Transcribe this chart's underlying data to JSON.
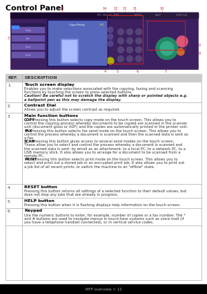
{
  "title": "Control Panel",
  "page_bg": "#ffffff",
  "footer_text": "MFP overview > 12",
  "footer_bg": "#000000",
  "rows": [
    {
      "ref": "1.",
      "title": "Touch screen display",
      "body_parts": [
        {
          "text": "Enables you to make selections associated with the copying, faxing and scanning\nfunctions by touching the screen to press selected buttons.",
          "bold": false,
          "italic": false
        },
        {
          "text": "Caution! Be careful not to scratch the display with sharp or pointed objects e.g.\na ballpoint pen as this may damage the display.",
          "bold": true,
          "italic": true
        }
      ]
    },
    {
      "ref": "2.",
      "title": "Contrast Dial",
      "body_parts": [
        {
          "text": "Allows you to adjust the screen contrast as required.",
          "bold": false,
          "italic": false
        }
      ]
    },
    {
      "ref": "3.",
      "title": "Main function buttons",
      "body_parts": [
        {
          "text": "COPY",
          "bold": true,
          "italic": false,
          "inline": ": Pressing this button selects copy mode on the touch screen. This allows you to\ncontrol the copying process whereby documents to be copied are scanned in the scanner\nunit (document glass or ADF) and the copies are automatically printed in the printer unit."
        },
        {
          "text": "FAX",
          "bold": true,
          "italic": false,
          "inline": ": Pressing this button selects fax send mode on the touch screen. This allows you to\ncontrol the process whereby a document is scanned and then the scanned data is sent as\na fax."
        },
        {
          "text": "SCAN",
          "bold": true,
          "italic": false,
          "inline": ": Pressing this button gives access to several send modes on the touch screen.\nThese allow you to select and control the process whereby a document is scanned and\nthe scanned data is sent: by email as an attachment, to a local PC, to a network PC, to a\nUSB memory stick. It also allows you to arrange for a document to be scanned from a\nremote PC."
        },
        {
          "text": "PRINT",
          "bold": true,
          "italic": false,
          "inline": ": Pressing this button selects print mode on the touch screen. This allows you to\nselect and print out a stored job or an encrypted print job. It also allows you to print out\na job list of all recent prints, or switch the machine to an \"offline\" state."
        }
      ]
    },
    {
      "ref": "4.",
      "title": "RESET button",
      "body_parts": [
        {
          "text": "Pressing this button returns all settings of a selected function to their default values, but\ndoes not stop any jobs that are already in progress.",
          "bold": false,
          "italic": false
        }
      ]
    },
    {
      "ref": "5.",
      "title": "HELP button",
      "body_parts": [
        {
          "text": "Pressing this button when it is flashing displays help information on the touch screen.",
          "bold": false,
          "italic": false
        }
      ]
    },
    {
      "ref": "6.",
      "title": "Keypad",
      "body_parts": [
        {
          "text": "Use the numeric buttons to enter, for example, number of copies or a fax number. The *\nand # buttons are used to navigate menus in touch-tone systems such as voice mail (if\nyou have a telephone handset connected), or in vertical service codes.",
          "bold": false,
          "italic": false
        }
      ]
    }
  ]
}
